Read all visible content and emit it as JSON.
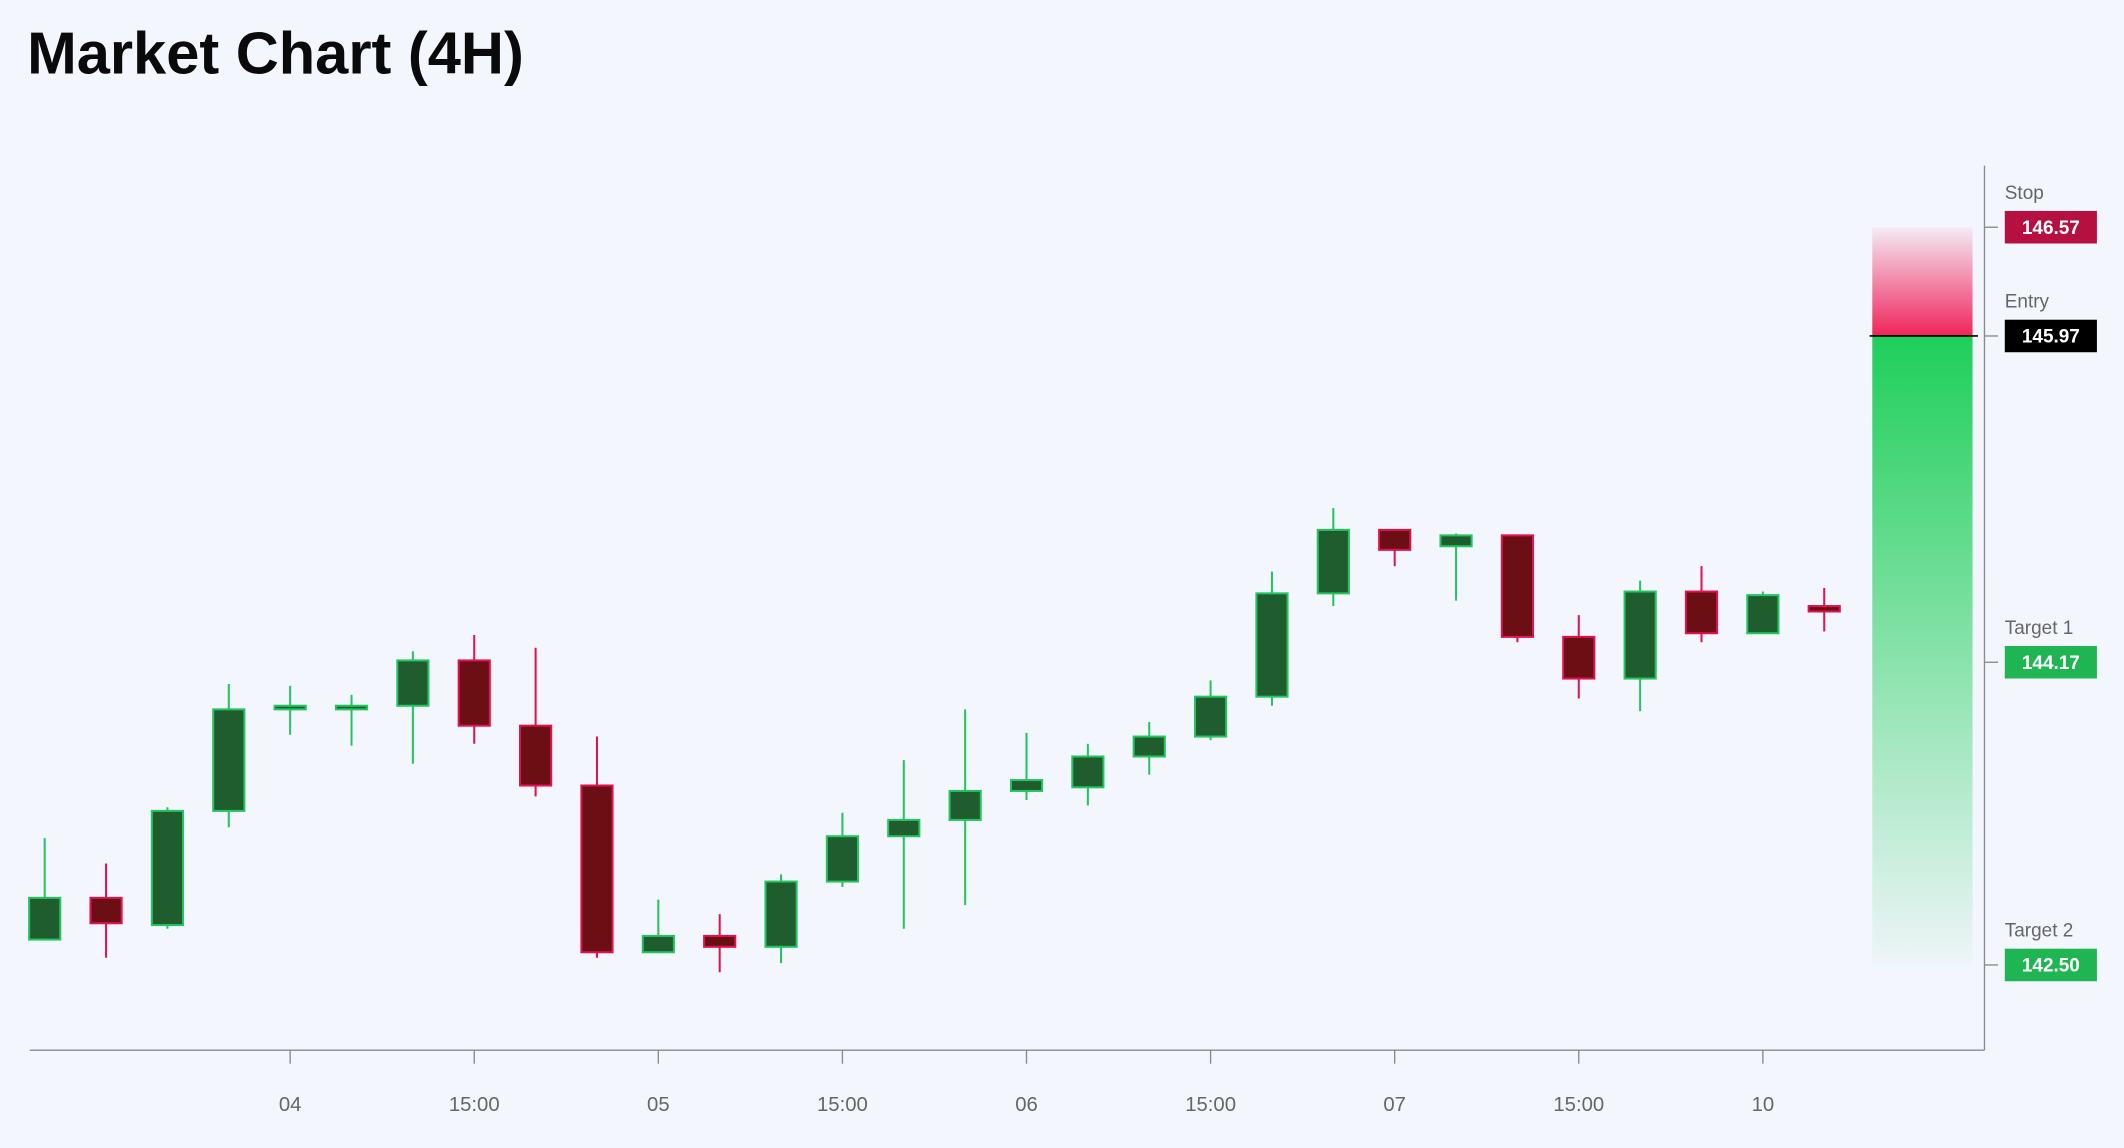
{
  "chart_data": {
    "type": "candlestick",
    "title": "Market Chart (4H)",
    "categories": [
      null,
      null,
      null,
      null,
      "04",
      null,
      null,
      "15:00",
      null,
      null,
      "05",
      null,
      null,
      "15:00",
      null,
      null,
      "06",
      null,
      null,
      "15:00",
      null,
      null,
      "07",
      null,
      null,
      "15:00",
      null,
      null,
      "10",
      null
    ],
    "open": [
      142.64,
      142.87,
      142.72,
      143.35,
      143.91,
      143.91,
      143.93,
      144.18,
      143.82,
      143.49,
      142.57,
      142.66,
      142.6,
      142.96,
      143.21,
      143.3,
      143.46,
      143.48,
      143.65,
      143.76,
      143.98,
      144.55,
      144.9,
      144.81,
      144.87,
      144.31,
      144.08,
      144.56,
      144.33,
      144.48
    ],
    "high": [
      143.2,
      143.06,
      143.37,
      144.05,
      144.04,
      143.99,
      144.23,
      144.32,
      144.25,
      143.76,
      142.86,
      142.78,
      143.0,
      143.34,
      143.63,
      143.91,
      143.78,
      143.72,
      143.84,
      144.07,
      144.67,
      145.02,
      144.9,
      144.88,
      144.87,
      144.43,
      144.62,
      144.7,
      144.56,
      144.58
    ],
    "low": [
      142.64,
      142.54,
      142.7,
      143.26,
      143.77,
      143.71,
      143.61,
      143.72,
      143.43,
      142.54,
      142.57,
      142.46,
      142.51,
      142.93,
      142.7,
      142.83,
      143.41,
      143.38,
      143.55,
      143.74,
      143.93,
      144.48,
      144.7,
      144.51,
      144.28,
      143.97,
      143.9,
      144.28,
      144.33,
      144.34
    ],
    "close": [
      142.87,
      142.73,
      143.35,
      143.91,
      143.93,
      143.93,
      144.18,
      143.82,
      143.49,
      142.57,
      142.66,
      142.6,
      142.96,
      143.21,
      143.3,
      143.46,
      143.52,
      143.65,
      143.76,
      143.98,
      144.55,
      144.9,
      144.79,
      144.87,
      144.31,
      144.08,
      144.56,
      144.33,
      144.54,
      144.45
    ],
    "up_color": "#22c55e",
    "down_color": "#e0124f",
    "ylim": [
      142.03,
      146.91
    ],
    "levels": {
      "names": [
        "Stop",
        "Entry",
        "Target 1",
        "Target 2"
      ],
      "values": [
        146.57,
        145.97,
        144.17,
        142.5
      ],
      "value_labels": [
        "146.57",
        "145.97",
        "144.17",
        "142.50"
      ],
      "colors": [
        "#b5103f",
        "#000000",
        "#1fb552",
        "#1fb552"
      ]
    }
  }
}
